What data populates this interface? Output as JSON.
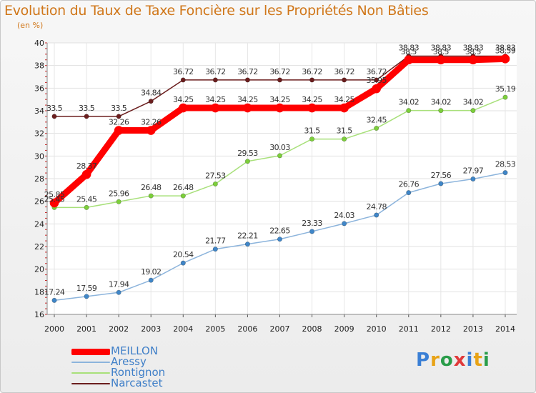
{
  "title": "Evolution du Taux de Taxe Foncière sur les Propriétés Non Bâties",
  "unit_label": "(en %)",
  "logo": {
    "text": "Proxiti",
    "colors": [
      "#3a7fd5",
      "#e8a317",
      "#2a9d4a",
      "#e03a3a",
      "#3a7fd5",
      "#e8a317",
      "#2a9d4a"
    ]
  },
  "chart_data": {
    "type": "line",
    "title": "Evolution du Taux de Taxe Foncière sur les Propriétés Non Bâties",
    "ylabel": "(en %)",
    "xlabel": "",
    "x": [
      "2000",
      "2001",
      "2002",
      "2003",
      "2004",
      "2005",
      "2006",
      "2007",
      "2008",
      "2009",
      "2010",
      "2011",
      "2012",
      "2013",
      "2014"
    ],
    "ylim": [
      16,
      40
    ],
    "yticks": [
      "16",
      "18",
      "20",
      "22",
      "24",
      "26",
      "28",
      "30",
      "32",
      "34",
      "36",
      "38",
      "40"
    ],
    "grid": true,
    "legend_position": "bottom-left",
    "series": [
      {
        "name": "Narcastet",
        "color": "#6b1e1e",
        "marker": "#6b1e1e",
        "values": [
          33.5,
          33.5,
          33.5,
          34.84,
          36.72,
          36.72,
          36.72,
          36.72,
          36.72,
          36.72,
          36.72,
          38.83,
          38.83,
          38.83,
          38.83
        ],
        "labels": [
          "33.5",
          "33.5",
          "33.5",
          "34.84",
          "36.72",
          "36.72",
          "36.72",
          "36.72",
          "36.72",
          "36.72",
          "36.72",
          "38.83",
          "38.83",
          "38.83",
          "38.83"
        ]
      },
      {
        "name": "Rontignon",
        "color": "#a8e07a",
        "marker": "#7ccf3a",
        "values": [
          25.45,
          25.45,
          25.96,
          26.48,
          26.48,
          27.53,
          29.53,
          30.03,
          31.5,
          31.5,
          32.45,
          34.02,
          34.02,
          34.02,
          35.19
        ],
        "labels": [
          "25.45",
          "25.45",
          "25.96",
          "26.48",
          "26.48",
          "27.53",
          "29.53",
          "30.03",
          "31.5",
          "31.5",
          "32.45",
          "34.02",
          "34.02",
          "34.02",
          "35.19"
        ]
      },
      {
        "name": "Aressy",
        "color": "#8cb4dc",
        "marker": "#3f86c8",
        "values": [
          17.24,
          17.59,
          17.94,
          19.02,
          20.54,
          21.77,
          22.21,
          22.65,
          23.33,
          24.03,
          24.78,
          26.76,
          27.56,
          27.97,
          28.53
        ],
        "labels": [
          "17.24",
          "17.59",
          "17.94",
          "19.02",
          "20.54",
          "21.77",
          "22.21",
          "22.65",
          "23.33",
          "24.03",
          "24.78",
          "26.76",
          "27.56",
          "27.97",
          "28.53"
        ]
      },
      {
        "name": "MEILLON",
        "color": "#ff0000",
        "marker": "#ff0000",
        "values": [
          25.85,
          28.37,
          32.26,
          32.26,
          34.25,
          34.25,
          34.25,
          34.25,
          34.25,
          34.25,
          35.95,
          38.5,
          38.5,
          38.5,
          38.59
        ],
        "labels": [
          "25.85",
          "28.37",
          "32.26",
          "32.26",
          "34.25",
          "34.25",
          "34.25",
          "34.25",
          "34.25",
          "34.25",
          "35.95",
          "38.5",
          "38.5",
          "38.5",
          "38.59"
        ]
      }
    ],
    "legend": [
      {
        "name": "MEILLON",
        "color": "#ff0000"
      },
      {
        "name": "Aressy",
        "color": "#8cb4dc"
      },
      {
        "name": "Rontignon",
        "color": "#a8e07a"
      },
      {
        "name": "Narcastet",
        "color": "#6b1e1e"
      }
    ]
  }
}
